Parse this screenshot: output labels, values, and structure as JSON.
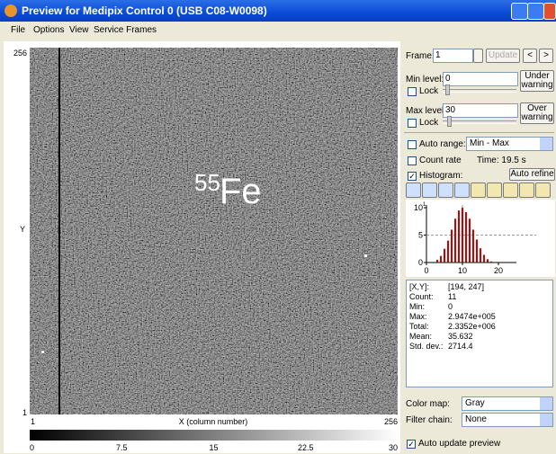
{
  "window": {
    "title": "Preview for Medipix Control 0 (USB C08-W0098)"
  },
  "menu": [
    "File",
    "Options",
    "View",
    "Service Frames"
  ],
  "image": {
    "y_top": "256",
    "y_label": "Y",
    "y_bottom": "1",
    "x_left": "1",
    "x_label": "X (column number)",
    "x_right": "256",
    "annotation_mass": "55",
    "annotation_element": "Fe"
  },
  "colorbar": {
    "ticks": [
      "0",
      "7.5",
      "15",
      "22.5",
      "30"
    ]
  },
  "controls": {
    "frame_label": "Frame:",
    "frame_value": "1",
    "update": "Update",
    "prev": "<",
    "next": ">",
    "min_label": "Min level:",
    "min_value": "0",
    "under_warning": [
      "Under",
      "warning"
    ],
    "lock": "Lock",
    "max_label": "Max level:",
    "max_value": "30",
    "over_warning": [
      "Over",
      "warning"
    ],
    "auto_range": "Auto range:",
    "range_mode": "Min - Max",
    "count_rate": "Count rate",
    "time": "Time: 19.5 s",
    "histogram": "Histogram:",
    "auto_refine": "Auto refine"
  },
  "histogram": {
    "color": "#cc0000",
    "xlim": [
      0,
      25
    ],
    "ylim": [
      0,
      10.5
    ],
    "xticks": [
      0,
      10,
      20
    ],
    "yticks": [
      0,
      5,
      10
    ],
    "y_exponent": "1",
    "x": [
      3,
      4,
      5,
      6,
      7,
      8,
      9,
      10,
      11,
      12,
      13,
      14,
      15,
      16,
      17,
      18
    ],
    "counts": [
      0.5,
      1.2,
      2.5,
      4,
      6,
      8,
      9.5,
      10,
      9.2,
      8,
      6,
      4.2,
      2.6,
      1.4,
      0.6,
      0.2
    ]
  },
  "stats": [
    [
      "[X,Y]:",
      "[194, 247]"
    ],
    [
      "Count:",
      "11"
    ],
    [
      "Min:",
      "0"
    ],
    [
      "Max:",
      "2.9474e+005"
    ],
    [
      "Total:",
      "2.3352e+006"
    ],
    [
      "Mean:",
      "35.632"
    ],
    [
      "Std. dev.:",
      "2714.4"
    ]
  ],
  "bottom": {
    "color_map_label": "Color map:",
    "color_map": "Gray",
    "filter_label": "Filter chain:",
    "filter": "None",
    "auto_update": "Auto update preview"
  }
}
